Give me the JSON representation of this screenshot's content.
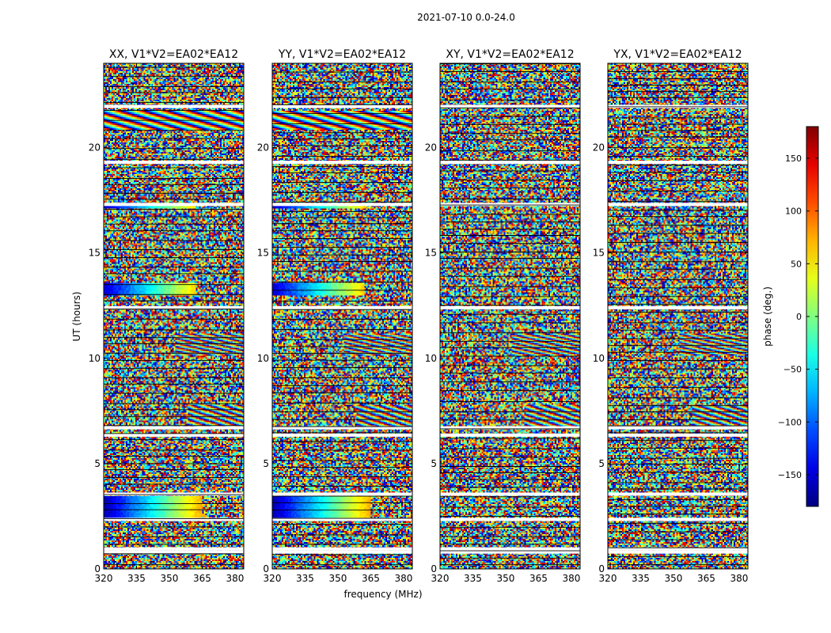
{
  "figure_title": "2021-07-10 0.0-24.0",
  "chart_data": {
    "type": "heatmap",
    "title": "2021-07-10 0.0-24.0",
    "xlabel": "frequency (MHz)",
    "ylabel": "UT (hours)",
    "xlim": [
      320,
      384
    ],
    "ylim": [
      0,
      24
    ],
    "x_ticks": [
      320,
      335,
      350,
      365,
      380
    ],
    "y_ticks": [
      0,
      5,
      10,
      15,
      20
    ],
    "panels": [
      {
        "title": "XX, V1*V2=EA02*EA12",
        "polarization": "XX",
        "baseline": "EA02*EA12"
      },
      {
        "title": "YY, V1*V2=EA02*EA12",
        "polarization": "YY",
        "baseline": "EA02*EA12"
      },
      {
        "title": "XY, V1*V2=EA02*EA12",
        "polarization": "XY",
        "baseline": "EA02*EA12"
      },
      {
        "title": "YX, V1*V2=EA02*EA12",
        "polarization": "YX",
        "baseline": "EA02*EA12"
      }
    ],
    "colorbar": {
      "label": "phase (deg.)",
      "colormap": "jet",
      "range": [
        -180,
        180
      ],
      "ticks": [
        -150,
        -100,
        -50,
        0,
        50,
        100,
        150
      ],
      "tick_labels": [
        "−150",
        "−100",
        "−50",
        "0",
        "50",
        "100",
        "150"
      ]
    },
    "flagged_gaps_ut_hours": [
      0.8,
      0.95,
      2.35,
      3.55,
      6.35,
      6.7,
      12.4,
      17.3,
      19.3,
      21.95
    ],
    "grid": false
  }
}
